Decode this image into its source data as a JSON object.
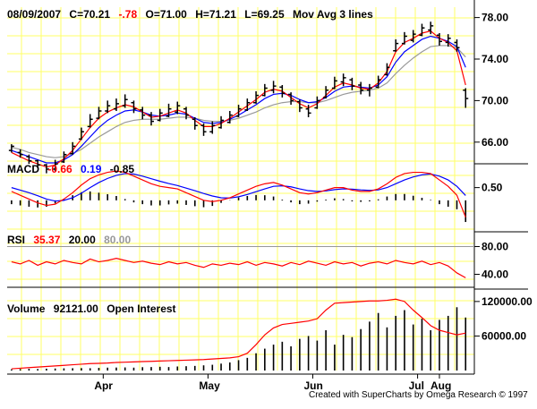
{
  "header": {
    "date": "08/09/2007",
    "close": "C=70.21",
    "change": "-.78",
    "open": "O=71.00",
    "high": "H=71.21",
    "low": "L=69.25",
    "study": "Mov Avg 3 lines"
  },
  "macd_header": {
    "name": "MACD",
    "v1": "-0.66",
    "v2": "0.19",
    "v3": "-0.85"
  },
  "rsi_header": {
    "name": "RSI",
    "v1": "35.37",
    "v2": "20.00",
    "v3": "80.00"
  },
  "volume_header": {
    "name": "Volume",
    "v1": "92121.00",
    "v2": "Open Interest"
  },
  "credit": "Created with SuperCharts by Omega Research © 1997",
  "colors": {
    "grid": "#ffff66",
    "red": "#ff0000",
    "blue": "#0000ff",
    "gray": "#999999",
    "black": "#000000"
  },
  "chart_data": [
    {
      "type": "line",
      "panel": "price",
      "ylim": [
        64,
        79
      ],
      "yticks": [
        "78.00",
        "74.00",
        "70.00",
        "66.00"
      ],
      "xticks": [
        "Apr",
        "May",
        "Jun",
        "Jul",
        "Aug"
      ],
      "x": [
        1,
        3,
        5,
        7,
        9,
        11,
        13,
        15,
        17,
        19,
        21,
        23,
        25,
        27,
        29,
        31,
        33,
        35,
        37,
        39,
        41,
        43,
        45,
        47,
        49,
        51,
        53,
        55,
        57,
        59,
        61,
        63,
        65,
        67,
        69,
        71,
        73,
        75,
        77,
        79,
        81,
        83,
        85,
        87,
        89,
        91,
        93,
        95,
        97,
        99,
        101,
        103,
        105
      ],
      "series": [
        {
          "name": "Price",
          "values": [
            65.4,
            64.8,
            64.2,
            63.8,
            63.4,
            63.8,
            64.6,
            65.4,
            66.8,
            68.0,
            68.8,
            69.4,
            69.6,
            69.9,
            69.4,
            68.8,
            68.2,
            68.6,
            69.0,
            69.3,
            68.8,
            67.8,
            67.2,
            67.4,
            67.9,
            68.4,
            69.0,
            69.6,
            70.3,
            71.0,
            71.3,
            70.9,
            70.2,
            69.5,
            69.0,
            69.8,
            70.8,
            71.7,
            72.0,
            71.6,
            71.2,
            71.0,
            71.8,
            73.0,
            75.3,
            76.0,
            76.2,
            76.8,
            77.0,
            75.9,
            75.8,
            75.3,
            70.2
          ]
        },
        {
          "name": "MA fast",
          "values": [
            65.0,
            64.6,
            64.2,
            63.9,
            63.6,
            63.8,
            64.4,
            65.2,
            66.3,
            67.4,
            68.3,
            68.9,
            69.3,
            69.6,
            69.4,
            68.9,
            68.4,
            68.5,
            68.8,
            69.1,
            68.8,
            68.1,
            67.5,
            67.5,
            67.8,
            68.3,
            68.9,
            69.5,
            70.1,
            70.8,
            71.1,
            70.9,
            70.3,
            69.7,
            69.3,
            69.7,
            70.5,
            71.3,
            71.7,
            71.5,
            71.2,
            71.1,
            71.7,
            72.8,
            74.7,
            75.6,
            76.0,
            76.5,
            76.7,
            76.0,
            75.6,
            74.8,
            71.5
          ]
        },
        {
          "name": "MA mid",
          "values": [
            65.2,
            64.9,
            64.6,
            64.3,
            64.0,
            64.0,
            64.3,
            64.8,
            65.6,
            66.5,
            67.4,
            68.1,
            68.6,
            69.0,
            69.1,
            68.9,
            68.6,
            68.5,
            68.6,
            68.8,
            68.7,
            68.3,
            67.9,
            67.8,
            67.9,
            68.2,
            68.6,
            69.1,
            69.6,
            70.2,
            70.6,
            70.7,
            70.5,
            70.1,
            69.8,
            69.9,
            70.3,
            70.9,
            71.3,
            71.4,
            71.3,
            71.2,
            71.5,
            72.3,
            73.7,
            74.7,
            75.3,
            75.9,
            76.2,
            76.0,
            75.7,
            75.2,
            73.2
          ]
        },
        {
          "name": "MA slow",
          "values": [
            65.5,
            65.3,
            65.0,
            64.8,
            64.6,
            64.5,
            64.6,
            64.9,
            65.3,
            65.9,
            66.5,
            67.0,
            67.5,
            67.9,
            68.1,
            68.2,
            68.2,
            68.2,
            68.3,
            68.4,
            68.4,
            68.3,
            68.1,
            68.0,
            68.0,
            68.1,
            68.3,
            68.6,
            68.9,
            69.3,
            69.6,
            69.8,
            69.9,
            69.9,
            69.8,
            69.8,
            70.0,
            70.3,
            70.6,
            70.8,
            70.9,
            71.0,
            71.2,
            71.7,
            72.6,
            73.4,
            74.1,
            74.7,
            75.2,
            75.3,
            75.3,
            75.1,
            74.2
          ]
        }
      ],
      "bars": [
        {
          "x": 1,
          "h": 65.8,
          "l": 65.0,
          "o": 65.2,
          "c": 65.6
        },
        {
          "x": 3,
          "h": 65.3,
          "l": 64.5,
          "o": 65.0,
          "c": 64.8
        },
        {
          "x": 5,
          "h": 64.8,
          "l": 63.9,
          "o": 64.6,
          "c": 64.2
        },
        {
          "x": 7,
          "h": 64.3,
          "l": 63.5,
          "o": 64.2,
          "c": 63.8
        },
        {
          "x": 9,
          "h": 63.9,
          "l": 63.0,
          "o": 63.8,
          "c": 63.4
        },
        {
          "x": 11,
          "h": 64.3,
          "l": 63.2,
          "o": 63.4,
          "c": 63.9
        },
        {
          "x": 13,
          "h": 65.1,
          "l": 64.0,
          "o": 64.1,
          "c": 64.8
        },
        {
          "x": 15,
          "h": 66.0,
          "l": 64.8,
          "o": 64.9,
          "c": 65.6
        },
        {
          "x": 17,
          "h": 67.4,
          "l": 66.2,
          "o": 66.3,
          "c": 67.0
        },
        {
          "x": 19,
          "h": 68.7,
          "l": 67.4,
          "o": 67.5,
          "c": 68.2
        },
        {
          "x": 21,
          "h": 69.4,
          "l": 68.2,
          "o": 68.3,
          "c": 69.0
        },
        {
          "x": 23,
          "h": 70.0,
          "l": 68.8,
          "o": 69.0,
          "c": 69.5
        },
        {
          "x": 25,
          "h": 70.2,
          "l": 69.0,
          "o": 69.2,
          "c": 69.7
        },
        {
          "x": 27,
          "h": 70.6,
          "l": 69.3,
          "o": 69.5,
          "c": 70.1
        },
        {
          "x": 29,
          "h": 70.0,
          "l": 68.8,
          "o": 69.8,
          "c": 69.2
        },
        {
          "x": 31,
          "h": 69.4,
          "l": 68.2,
          "o": 69.1,
          "c": 68.6
        },
        {
          "x": 33,
          "h": 68.9,
          "l": 67.6,
          "o": 68.6,
          "c": 68.0
        },
        {
          "x": 35,
          "h": 69.2,
          "l": 68.0,
          "o": 68.1,
          "c": 68.8
        },
        {
          "x": 37,
          "h": 69.7,
          "l": 68.4,
          "o": 68.5,
          "c": 69.2
        },
        {
          "x": 39,
          "h": 69.9,
          "l": 68.7,
          "o": 68.9,
          "c": 69.5
        },
        {
          "x": 41,
          "h": 69.4,
          "l": 68.2,
          "o": 69.2,
          "c": 68.6
        },
        {
          "x": 43,
          "h": 68.4,
          "l": 67.2,
          "o": 68.2,
          "c": 67.6
        },
        {
          "x": 45,
          "h": 67.8,
          "l": 66.6,
          "o": 67.6,
          "c": 67.0
        },
        {
          "x": 47,
          "h": 68.0,
          "l": 66.8,
          "o": 67.0,
          "c": 67.6
        },
        {
          "x": 49,
          "h": 68.5,
          "l": 67.3,
          "o": 67.4,
          "c": 68.1
        },
        {
          "x": 51,
          "h": 69.0,
          "l": 67.8,
          "o": 67.9,
          "c": 68.6
        },
        {
          "x": 53,
          "h": 69.6,
          "l": 68.4,
          "o": 68.5,
          "c": 69.2
        },
        {
          "x": 55,
          "h": 70.2,
          "l": 69.0,
          "o": 69.1,
          "c": 69.8
        },
        {
          "x": 57,
          "h": 70.9,
          "l": 69.7,
          "o": 69.8,
          "c": 70.5
        },
        {
          "x": 59,
          "h": 71.6,
          "l": 70.4,
          "o": 70.5,
          "c": 71.2
        },
        {
          "x": 61,
          "h": 71.9,
          "l": 70.7,
          "o": 71.0,
          "c": 71.4
        },
        {
          "x": 63,
          "h": 71.5,
          "l": 70.3,
          "o": 71.3,
          "c": 70.7
        },
        {
          "x": 65,
          "h": 70.8,
          "l": 69.6,
          "o": 70.6,
          "c": 70.0
        },
        {
          "x": 67,
          "h": 70.1,
          "l": 68.9,
          "o": 69.9,
          "c": 69.3
        },
        {
          "x": 69,
          "h": 69.6,
          "l": 68.4,
          "o": 69.2,
          "c": 68.8
        },
        {
          "x": 71,
          "h": 70.4,
          "l": 69.2,
          "o": 69.3,
          "c": 70.0
        },
        {
          "x": 73,
          "h": 71.4,
          "l": 70.2,
          "o": 70.3,
          "c": 71.0
        },
        {
          "x": 75,
          "h": 72.3,
          "l": 71.1,
          "o": 71.2,
          "c": 71.9
        },
        {
          "x": 77,
          "h": 72.6,
          "l": 71.4,
          "o": 71.8,
          "c": 72.2
        },
        {
          "x": 79,
          "h": 72.2,
          "l": 71.0,
          "o": 72.0,
          "c": 71.4
        },
        {
          "x": 81,
          "h": 71.8,
          "l": 70.6,
          "o": 71.5,
          "c": 71.0
        },
        {
          "x": 83,
          "h": 71.6,
          "l": 70.4,
          "o": 71.0,
          "c": 71.2
        },
        {
          "x": 85,
          "h": 72.4,
          "l": 71.2,
          "o": 71.3,
          "c": 72.0
        },
        {
          "x": 87,
          "h": 73.6,
          "l": 72.4,
          "o": 72.5,
          "c": 73.2
        },
        {
          "x": 89,
          "h": 75.9,
          "l": 74.7,
          "o": 74.8,
          "c": 75.5
        },
        {
          "x": 91,
          "h": 76.6,
          "l": 75.4,
          "o": 75.5,
          "c": 76.2
        },
        {
          "x": 93,
          "h": 76.8,
          "l": 75.6,
          "o": 75.8,
          "c": 76.4
        },
        {
          "x": 95,
          "h": 77.4,
          "l": 76.2,
          "o": 76.3,
          "c": 77.0
        },
        {
          "x": 97,
          "h": 77.6,
          "l": 76.4,
          "o": 76.8,
          "c": 77.2
        },
        {
          "x": 99,
          "h": 76.5,
          "l": 75.3,
          "o": 76.3,
          "c": 75.7
        },
        {
          "x": 101,
          "h": 76.4,
          "l": 75.2,
          "o": 75.6,
          "c": 76.0
        },
        {
          "x": 103,
          "h": 75.9,
          "l": 74.7,
          "o": 75.6,
          "c": 75.1
        },
        {
          "x": 105,
          "h": 71.2,
          "l": 69.3,
          "o": 71.0,
          "c": 70.2
        }
      ]
    },
    {
      "type": "line",
      "panel": "macd",
      "ylim": [
        -1.2,
        1.4
      ],
      "yticks": [
        "0.50"
      ],
      "series": [
        {
          "name": "MACD",
          "values": [
            0.35,
            0.2,
            0.05,
            -0.1,
            -0.2,
            -0.15,
            0.05,
            0.3,
            0.6,
            0.85,
            1.0,
            1.1,
            1.15,
            1.1,
            0.95,
            0.8,
            0.65,
            0.55,
            0.5,
            0.45,
            0.3,
            0.15,
            0.0,
            -0.05,
            0.0,
            0.1,
            0.25,
            0.4,
            0.55,
            0.65,
            0.7,
            0.6,
            0.45,
            0.3,
            0.25,
            0.3,
            0.4,
            0.5,
            0.5,
            0.4,
            0.35,
            0.35,
            0.45,
            0.65,
            0.9,
            1.05,
            1.1,
            1.1,
            1.05,
            0.8,
            0.55,
            0.2,
            -0.66
          ]
        },
        {
          "name": "Signal",
          "values": [
            0.5,
            0.4,
            0.3,
            0.18,
            0.05,
            -0.03,
            0.0,
            0.1,
            0.28,
            0.5,
            0.7,
            0.86,
            0.98,
            1.05,
            1.03,
            0.95,
            0.85,
            0.75,
            0.66,
            0.58,
            0.48,
            0.38,
            0.27,
            0.17,
            0.1,
            0.09,
            0.14,
            0.23,
            0.34,
            0.45,
            0.55,
            0.57,
            0.53,
            0.45,
            0.38,
            0.35,
            0.37,
            0.42,
            0.45,
            0.44,
            0.41,
            0.39,
            0.41,
            0.5,
            0.65,
            0.8,
            0.92,
            1.0,
            1.03,
            0.95,
            0.8,
            0.55,
            0.19
          ]
        },
        {
          "name": "Histogram",
          "values": [
            -0.15,
            -0.2,
            -0.25,
            -0.28,
            -0.25,
            -0.12,
            0.05,
            0.2,
            0.32,
            0.35,
            0.3,
            0.24,
            0.17,
            0.05,
            -0.08,
            -0.15,
            -0.2,
            -0.2,
            -0.16,
            -0.13,
            -0.18,
            -0.23,
            -0.27,
            -0.22,
            -0.1,
            0.01,
            0.11,
            0.17,
            0.21,
            0.2,
            0.15,
            0.03,
            -0.08,
            -0.15,
            -0.13,
            -0.05,
            0.03,
            0.08,
            0.05,
            -0.04,
            -0.06,
            -0.04,
            0.04,
            0.15,
            0.25,
            0.25,
            0.18,
            0.1,
            0.02,
            -0.15,
            -0.25,
            -0.35,
            -0.85
          ]
        }
      ]
    },
    {
      "type": "line",
      "panel": "rsi",
      "ylim": [
        20,
        100
      ],
      "yticks": [
        "80.00",
        "40.00"
      ],
      "series": [
        {
          "name": "RSI",
          "values": [
            58,
            55,
            60,
            53,
            58,
            55,
            60,
            57,
            55,
            62,
            58,
            60,
            63,
            60,
            57,
            59,
            56,
            54,
            58,
            55,
            57,
            53,
            50,
            55,
            53,
            56,
            54,
            58,
            53,
            57,
            55,
            52,
            57,
            54,
            59,
            56,
            53,
            58,
            55,
            57,
            52,
            56,
            58,
            55,
            60,
            57,
            55,
            59,
            54,
            57,
            52,
            42,
            35
          ]
        }
      ]
    },
    {
      "type": "bar",
      "panel": "volume",
      "ylim": [
        0,
        140000
      ],
      "yticks": [
        "120000.00",
        "60000.00"
      ],
      "series": [
        {
          "name": "Volume",
          "values": [
            2000,
            2500,
            3000,
            2600,
            3200,
            3500,
            3800,
            4000,
            4200,
            4000,
            4600,
            5000,
            5200,
            5400,
            5000,
            5800,
            6000,
            6500,
            6000,
            7000,
            7500,
            8000,
            9000,
            10000,
            12000,
            14000,
            18000,
            22000,
            30000,
            38000,
            45000,
            50000,
            42000,
            55000,
            60000,
            52000,
            70000,
            45000,
            62000,
            58000,
            72000,
            85000,
            100000,
            75000,
            95000,
            105000,
            80000,
            90000,
            70000,
            88000,
            95000,
            110000,
            92121
          ]
        },
        {
          "name": "Open Interest",
          "values": [
            3000,
            4000,
            5000,
            6000,
            7000,
            8000,
            9000,
            10000,
            11000,
            12000,
            12500,
            13000,
            14000,
            14500,
            15000,
            15500,
            16000,
            16500,
            17000,
            17500,
            18000,
            18500,
            19000,
            20000,
            21000,
            22000,
            24000,
            30000,
            45000,
            62000,
            74000,
            80000,
            82000,
            84000,
            86000,
            90000,
            105000,
            117000,
            118000,
            119000,
            120000,
            121000,
            121000,
            122000,
            124000,
            120000,
            105000,
            92000,
            78000,
            70000,
            66000,
            62000,
            65000
          ]
        }
      ]
    }
  ]
}
